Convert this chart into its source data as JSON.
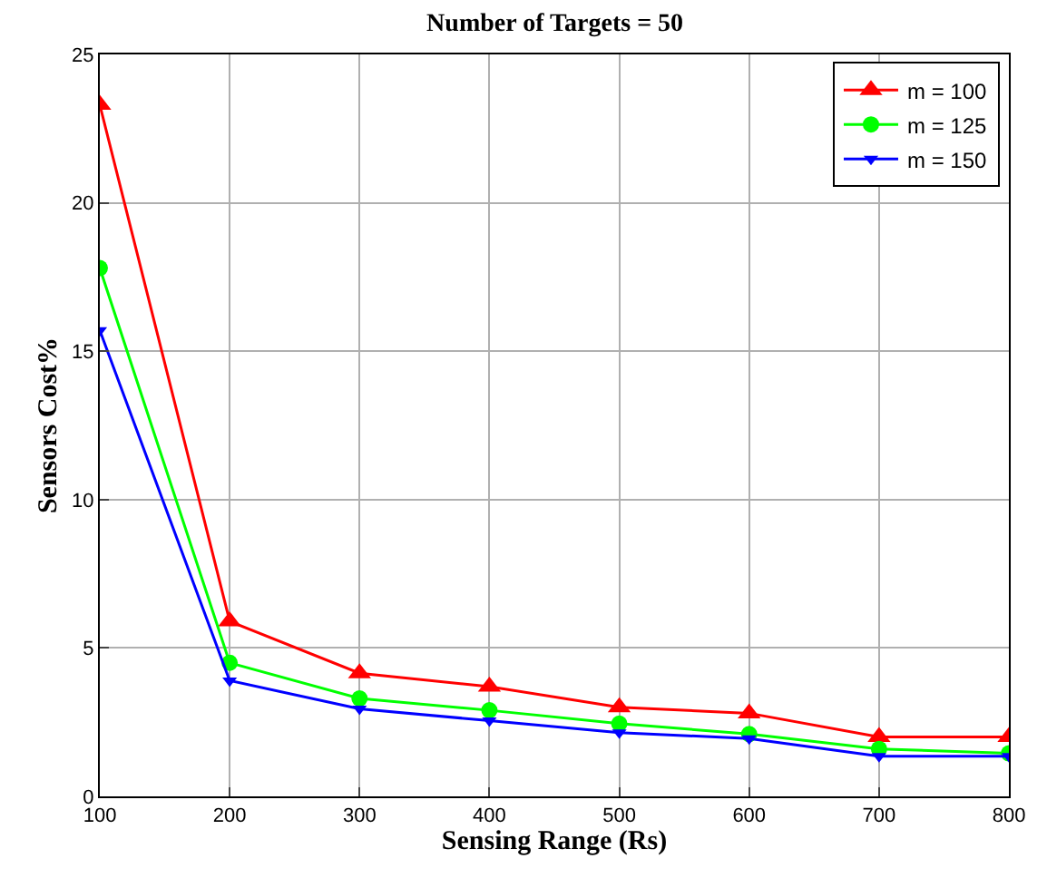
{
  "chart_data": {
    "type": "line",
    "title": "Number of Targets = 50",
    "xlabel": "Sensing Range (Rs)",
    "ylabel": "Sensors Cost%",
    "x": [
      100,
      200,
      300,
      400,
      500,
      600,
      700,
      800
    ],
    "series": [
      {
        "name": "m = 100",
        "color": "#ff0000",
        "marker": "triangle-up",
        "values": [
          23.3,
          5.9,
          4.15,
          3.7,
          3.0,
          2.8,
          2.0,
          2.0
        ]
      },
      {
        "name": "m = 125",
        "color": "#00ff00",
        "marker": "circle",
        "values": [
          17.8,
          4.5,
          3.3,
          2.9,
          2.45,
          2.1,
          1.6,
          1.45
        ]
      },
      {
        "name": "m = 150",
        "color": "#0000ff",
        "marker": "triangle-down",
        "values": [
          15.7,
          3.9,
          2.95,
          2.55,
          2.15,
          1.95,
          1.35,
          1.35
        ]
      }
    ],
    "xlim": [
      100,
      800
    ],
    "xticks": [
      100,
      200,
      300,
      400,
      500,
      600,
      700,
      800
    ],
    "ylim": [
      0,
      25
    ],
    "yticks": [
      0,
      5,
      10,
      15,
      20,
      25
    ],
    "grid": true,
    "legend": "top right",
    "line_style": "solid"
  }
}
